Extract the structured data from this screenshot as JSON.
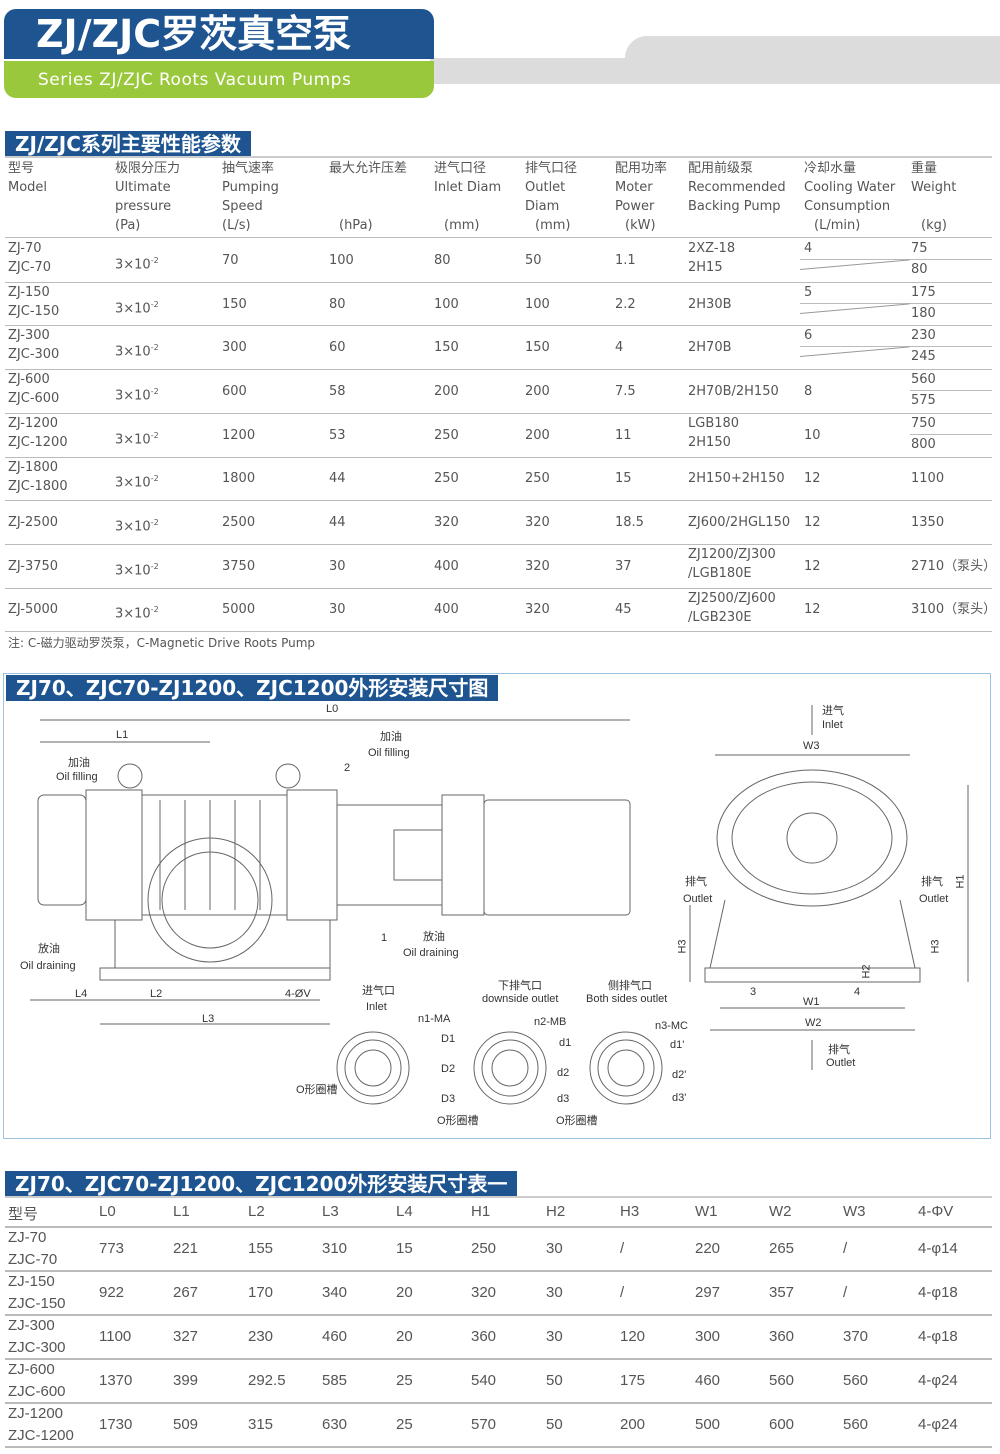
{
  "header": {
    "title": "ZJ/ZJC罗茨真空泵",
    "subtitle": "Series ZJ/ZJC Roots Vacuum Pumps",
    "blue": "#1e5591",
    "green": "#9ac83c"
  },
  "perf": {
    "title": "ZJ/ZJC系列主要性能参数",
    "columns": [
      [
        "型号",
        "Model",
        "",
        ""
      ],
      [
        "极限分压力",
        "Ultimate",
        "pressure",
        "(Pa)"
      ],
      [
        "抽气速率",
        "Pumping",
        "Speed",
        "(L/s)"
      ],
      [
        "最大允许压差",
        "",
        "",
        "(hPa)"
      ],
      [
        "进气口径",
        "Inlet Diam",
        "",
        "(mm)"
      ],
      [
        "排气口径",
        "Outlet",
        "Diam",
        "(mm)"
      ],
      [
        "配用功率",
        "Moter",
        "Power",
        "(kW)"
      ],
      [
        "配用前级泵",
        "Recommended",
        "Backing Pump",
        ""
      ],
      [
        "冷却水量",
        "Cooling Water",
        "Consumption",
        "(L/min)"
      ],
      [
        "重量",
        "Weight",
        "",
        "(kg)"
      ]
    ],
    "rows": [
      {
        "model": [
          "ZJ-70",
          "ZJC-70"
        ],
        "base": "3×10",
        "exp": "-2",
        "speed": "70",
        "dp": "100",
        "inlet": "80",
        "outlet": "50",
        "power": "1.1",
        "pump": [
          "2XZ-18",
          "2H15"
        ],
        "water": "4",
        "weight": [
          "75",
          "80"
        ]
      },
      {
        "model": [
          "ZJ-150",
          "ZJC-150"
        ],
        "base": "3×10",
        "exp": "-2",
        "speed": "150",
        "dp": "80",
        "inlet": "100",
        "outlet": "100",
        "power": "2.2",
        "pump": [
          "2H30B"
        ],
        "water": "5",
        "weight": [
          "175",
          "180"
        ]
      },
      {
        "model": [
          "ZJ-300",
          "ZJC-300"
        ],
        "base": "3×10",
        "exp": "-2",
        "speed": "300",
        "dp": "60",
        "inlet": "150",
        "outlet": "150",
        "power": "4",
        "pump": [
          "2H70B"
        ],
        "water": "6",
        "weight": [
          "230",
          "245"
        ]
      },
      {
        "model": [
          "ZJ-600",
          "ZJC-600"
        ],
        "base": "3×10",
        "exp": "-2",
        "speed": "600",
        "dp": "58",
        "inlet": "200",
        "outlet": "200",
        "power": "7.5",
        "pump": [
          "2H70B/2H150"
        ],
        "water": "8",
        "weight": [
          "560",
          "575"
        ]
      },
      {
        "model": [
          "ZJ-1200",
          "ZJC-1200"
        ],
        "base": "3×10",
        "exp": "-2",
        "speed": "1200",
        "dp": "53",
        "inlet": "250",
        "outlet": "200",
        "power": "11",
        "pump": [
          "LGB180",
          "2H150"
        ],
        "water": "10",
        "weight": [
          "750",
          "800"
        ]
      },
      {
        "model": [
          "ZJ-1800",
          "ZJC-1800"
        ],
        "base": "3×10",
        "exp": "-2",
        "speed": "1800",
        "dp": "44",
        "inlet": "250",
        "outlet": "250",
        "power": "15",
        "pump": [
          "2H150+2H150"
        ],
        "water": "12",
        "weight": [
          "1100"
        ]
      },
      {
        "model": [
          "ZJ-2500"
        ],
        "base": "3×10",
        "exp": "-2",
        "speed": "2500",
        "dp": "44",
        "inlet": "320",
        "outlet": "320",
        "power": "18.5",
        "pump": [
          "ZJ600/2HGL150"
        ],
        "water": "12",
        "weight": [
          "1350"
        ]
      },
      {
        "model": [
          "ZJ-3750"
        ],
        "base": "3×10",
        "exp": "-2",
        "speed": "3750",
        "dp": "30",
        "inlet": "400",
        "outlet": "320",
        "power": "37",
        "pump": [
          "ZJ1200/ZJ300",
          "/LGB180E"
        ],
        "water": "12",
        "weight": [
          "2710（泵头）"
        ]
      },
      {
        "model": [
          "ZJ-5000"
        ],
        "base": "3×10",
        "exp": "-2",
        "speed": "5000",
        "dp": "30",
        "inlet": "400",
        "outlet": "320",
        "power": "45",
        "pump": [
          "ZJ2500/ZJ600",
          "/LGB230E"
        ],
        "water": "12",
        "weight": [
          "3100（泵头）"
        ]
      }
    ],
    "note": "注: C-磁力驱动罗茨泵，C-Magnetic Drive Roots Pump"
  },
  "drawing": {
    "title": "ZJ70、ZJC70-ZJ1200、ZJC1200外形安装尺寸图",
    "labels": [
      "L0",
      "L1",
      "加油",
      "Oil filling",
      "加油",
      "Oil filling",
      "2",
      "1",
      "放油",
      "Oil draining",
      "放油",
      "Oil draining",
      "L4",
      "L2",
      "4-ØV",
      "L3",
      "进气",
      "Inlet",
      "W3",
      "排气",
      "Outlet",
      "排气",
      "Outlet",
      "H1",
      "H3",
      "H3",
      "H2",
      "3",
      "4",
      "W1",
      "W2",
      "排气",
      "Outlet",
      "进气口",
      "Inlet",
      "下排气口",
      "downside outlet",
      "侧排气口",
      "Both sides outlet",
      "n1-MA",
      "D1",
      "D2",
      "D3",
      "O形圈槽",
      "n2-MB",
      "d1",
      "d2",
      "d3",
      "O形圈槽",
      "n3-MC",
      "d1'",
      "d2'",
      "d3'",
      "O形圈槽"
    ]
  },
  "dims": {
    "title": "ZJ70、ZJC70-ZJ1200、ZJC1200外形安装尺寸表一",
    "headers": [
      "型号",
      "L0",
      "L1",
      "L2",
      "L3",
      "L4",
      "H1",
      "H2",
      "H3",
      "W1",
      "W2",
      "W3",
      "4-ΦV"
    ],
    "rows": [
      [
        [
          "ZJ-70",
          "ZJC-70"
        ],
        "773",
        "221",
        "155",
        "310",
        "15",
        "250",
        "30",
        "/",
        "220",
        "265",
        "/",
        "4-φ14"
      ],
      [
        [
          "ZJ-150",
          "ZJC-150"
        ],
        "922",
        "267",
        "170",
        "340",
        "20",
        "320",
        "30",
        "/",
        "297",
        "357",
        "/",
        "4-φ18"
      ],
      [
        [
          "ZJ-300",
          "ZJC-300"
        ],
        "1100",
        "327",
        "230",
        "460",
        "20",
        "360",
        "30",
        "120",
        "300",
        "360",
        "370",
        "4-φ18"
      ],
      [
        [
          "ZJ-600",
          "ZJC-600"
        ],
        "1370",
        "399",
        "292.5",
        "585",
        "25",
        "540",
        "50",
        "175",
        "460",
        "560",
        "560",
        "4-φ24"
      ],
      [
        [
          "ZJ-1200",
          "ZJC-1200"
        ],
        "1730",
        "509",
        "315",
        "630",
        "25",
        "570",
        "50",
        "200",
        "500",
        "600",
        "560",
        "4-φ24"
      ]
    ]
  }
}
